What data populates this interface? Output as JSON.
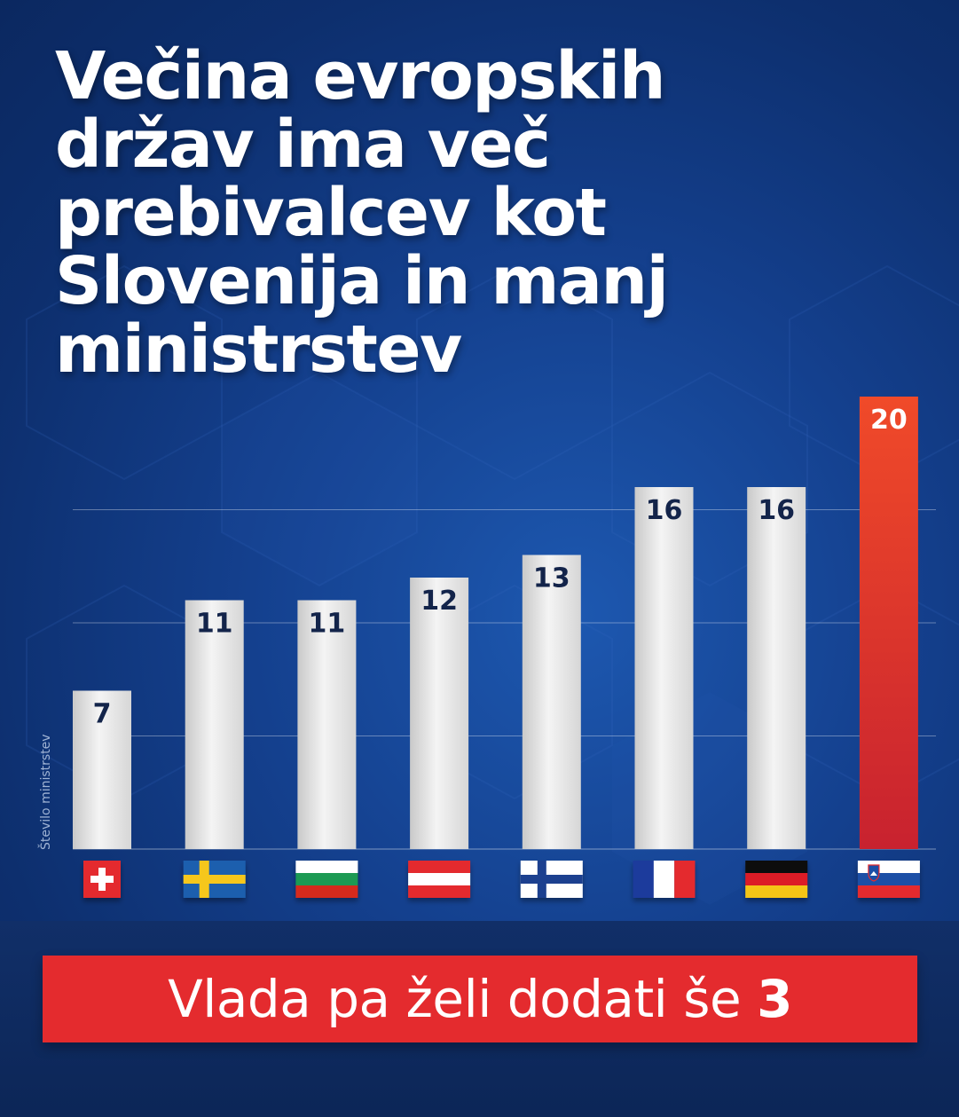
{
  "title": "Večina evropskih držav ima več prebivalcev kot Slovenija in manj ministrstev",
  "chart_data": {
    "type": "bar",
    "ylabel": "Število ministrstev",
    "ylim": [
      0,
      20
    ],
    "grid": "horizontal",
    "categories": [
      "switzerland-flag",
      "sweden-flag",
      "bulgaria-flag",
      "austria-flag",
      "finland-flag",
      "france-flag",
      "germany-flag",
      "slovenia-flag"
    ],
    "values": [
      7,
      11,
      11,
      12,
      13,
      16,
      16,
      20
    ],
    "data_labels": [
      "7",
      "11",
      "11",
      "12",
      "13",
      "16",
      "16",
      "20"
    ],
    "highlight_index": 7,
    "colors": {
      "bar": "#e0e0e0",
      "highlight_top": "#f04a29",
      "highlight_bottom": "#c8222f",
      "label_dark": "#13244a",
      "label_light": "#ffffff"
    }
  },
  "banner": {
    "text": "Vlada pa želi dodati še ",
    "number": "3"
  }
}
